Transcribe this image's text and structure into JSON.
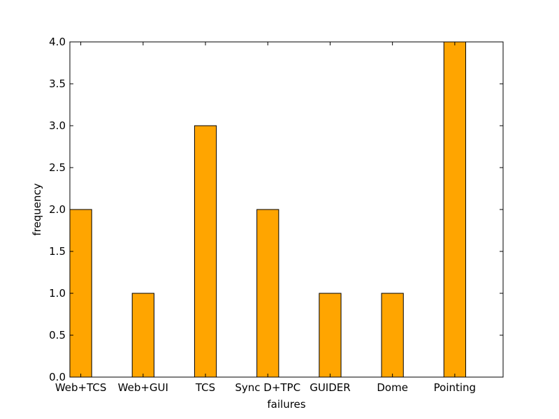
{
  "chart_data": {
    "type": "bar",
    "title": "",
    "xlabel": "failures",
    "ylabel": "frequency",
    "categories": [
      "Web+TCS",
      "Web+GUI",
      "TCS",
      "Sync D+TPC",
      "GUIDER",
      "Dome",
      "Pointing"
    ],
    "values": [
      2,
      1,
      3,
      2,
      1,
      1,
      4
    ],
    "ylim": [
      0,
      4.0
    ],
    "yticks": [
      "0.0",
      "0.5",
      "1.0",
      "1.5",
      "2.0",
      "2.5",
      "3.0",
      "3.5",
      "4.0"
    ],
    "grid": false,
    "legend": "none",
    "colors": {
      "bar_fill": "#ffa500",
      "bar_edge": "#000000",
      "background": "#ffffff"
    }
  }
}
